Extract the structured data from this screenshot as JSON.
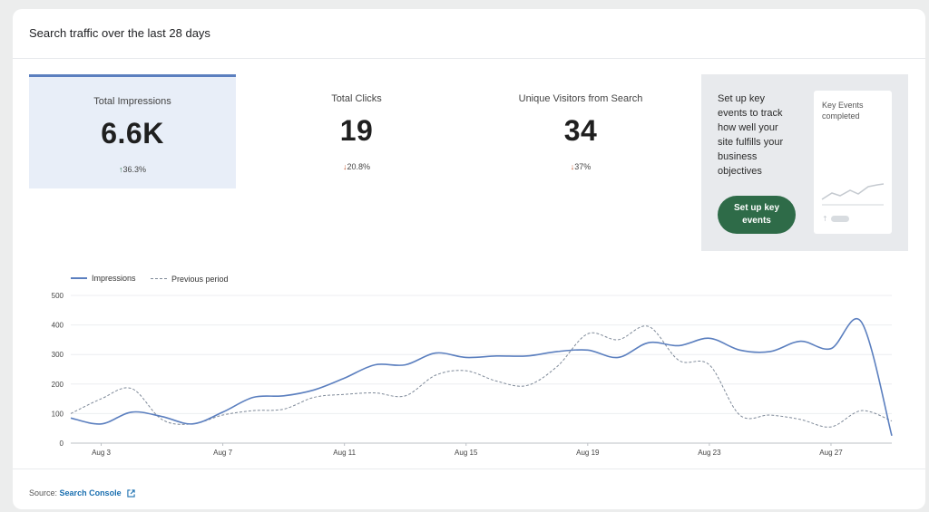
{
  "card": {
    "title": "Search traffic over the last 28 days"
  },
  "metrics": [
    {
      "label": "Total Impressions",
      "value": "6.6K",
      "change": "36.3%",
      "direction": "up",
      "selected": true
    },
    {
      "label": "Total Clicks",
      "value": "19",
      "change": "20.8%",
      "direction": "down",
      "selected": false
    },
    {
      "label": "Unique Visitors from Search",
      "value": "34",
      "change": "37%",
      "direction": "down",
      "selected": false
    }
  ],
  "promo": {
    "text": "Set up key events to track how well your site fulfills your business objectives",
    "button_label": "Set up key events",
    "mini_title": "Key Events completed"
  },
  "footer": {
    "source_prefix": "Source:",
    "source_link": "Search Console",
    "link_icon": "external-link-icon"
  },
  "colors": {
    "accent": "#5b7fbf",
    "button": "#2e6b48",
    "up": "#3b7a57",
    "down": "#c5562e"
  },
  "chart_data": {
    "type": "line",
    "title": "",
    "xlabel": "",
    "ylabel": "",
    "ylim": [
      0,
      500
    ],
    "yticks": [
      0,
      100,
      200,
      300,
      400,
      500
    ],
    "legend_position": "top-left",
    "grid": true,
    "x": [
      "Aug 2",
      "Aug 3",
      "Aug 4",
      "Aug 5",
      "Aug 6",
      "Aug 7",
      "Aug 8",
      "Aug 9",
      "Aug 10",
      "Aug 11",
      "Aug 12",
      "Aug 13",
      "Aug 14",
      "Aug 15",
      "Aug 16",
      "Aug 17",
      "Aug 18",
      "Aug 19",
      "Aug 20",
      "Aug 21",
      "Aug 22",
      "Aug 23",
      "Aug 24",
      "Aug 25",
      "Aug 26",
      "Aug 27",
      "Aug 28",
      "Aug 29"
    ],
    "xtick_labels": [
      "Aug 3",
      "Aug 7",
      "Aug 11",
      "Aug 15",
      "Aug 19",
      "Aug 23",
      "Aug 27"
    ],
    "series": [
      {
        "name": "Impressions",
        "style": "solid",
        "color": "#5b7fbf",
        "values": [
          85,
          65,
          105,
          90,
          65,
          105,
          155,
          160,
          180,
          220,
          265,
          265,
          305,
          290,
          295,
          295,
          310,
          315,
          290,
          340,
          330,
          355,
          315,
          310,
          345,
          320,
          410,
          25
        ]
      },
      {
        "name": "Previous period",
        "style": "dashed",
        "color": "#7f8a99",
        "values": [
          100,
          150,
          185,
          80,
          65,
          95,
          110,
          115,
          155,
          165,
          170,
          160,
          230,
          245,
          210,
          195,
          260,
          370,
          350,
          395,
          280,
          265,
          95,
          95,
          80,
          55,
          110,
          75
        ]
      }
    ]
  }
}
